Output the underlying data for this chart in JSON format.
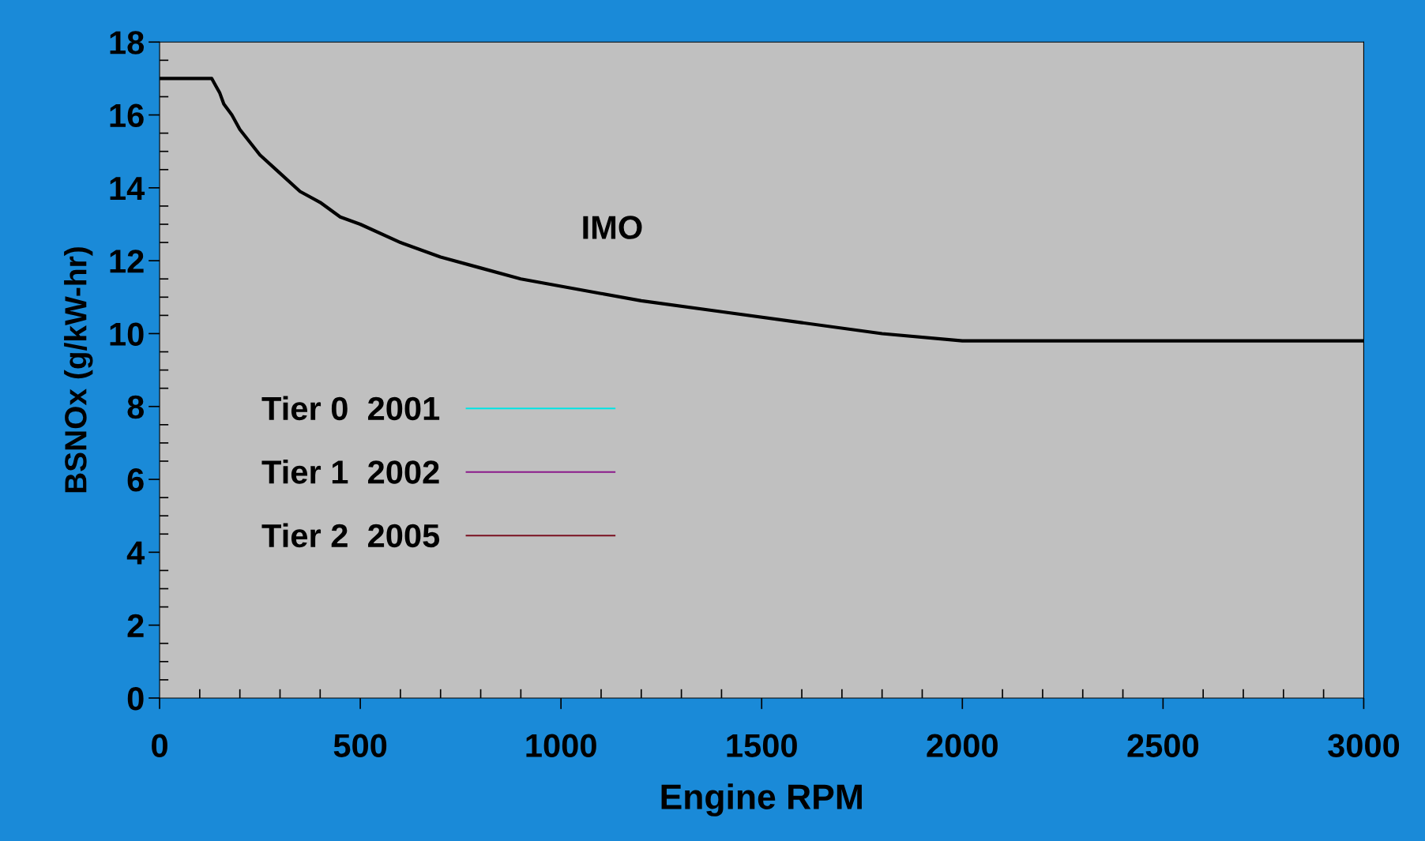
{
  "chart_data": {
    "type": "line",
    "xlabel": "Engine RPM",
    "ylabel": "BSNOx (g/kW-hr)",
    "x": [
      0,
      130,
      140,
      150,
      160,
      180,
      200,
      250,
      300,
      350,
      400,
      450,
      500,
      600,
      700,
      800,
      900,
      1000,
      1100,
      1200,
      1400,
      1600,
      1800,
      2000,
      3000
    ],
    "series": [
      {
        "color": "#000000",
        "values": [
          17.0,
          17.0,
          16.8,
          16.6,
          16.3,
          16.0,
          15.6,
          14.9,
          14.4,
          13.9,
          13.6,
          13.2,
          13.0,
          12.5,
          12.1,
          11.8,
          11.5,
          11.3,
          11.1,
          10.9,
          10.6,
          10.3,
          10.0,
          9.8,
          9.8
        ]
      },
      {
        "name": "Tier 0  2001",
        "color": "#00e5e5",
        "values": [
          null,
          null,
          null,
          null,
          null,
          null,
          null,
          null,
          null,
          null,
          null,
          null,
          null,
          null,
          null,
          null,
          null,
          null,
          null,
          null,
          null,
          null,
          null,
          null,
          null
        ]
      },
      {
        "name": "Tier 1  2002",
        "color": "#8b1a8b",
        "values": [
          null,
          null,
          null,
          null,
          null,
          null,
          null,
          null,
          null,
          null,
          null,
          null,
          null,
          null,
          null,
          null,
          null,
          null,
          null,
          null,
          null,
          null,
          null,
          null,
          null
        ]
      },
      {
        "name": "Tier 2  2005",
        "color": "#7a1020",
        "values": [
          null,
          null,
          null,
          null,
          null,
          null,
          null,
          null,
          null,
          null,
          null,
          null,
          null,
          null,
          null,
          null,
          null,
          null,
          null,
          null,
          null,
          null,
          null,
          null,
          null
        ]
      }
    ],
    "annotations": [
      "IMO"
    ],
    "xlim": [
      0,
      3000
    ],
    "xticks": [
      0,
      500,
      1000,
      1500,
      2000,
      2500,
      3000
    ],
    "ylim": [
      0,
      18
    ],
    "yticks": [
      0,
      2,
      4,
      6,
      8,
      10,
      12,
      14,
      16,
      18
    ],
    "grid": false,
    "legend": "left",
    "marker": "none",
    "line_style": "solid"
  }
}
